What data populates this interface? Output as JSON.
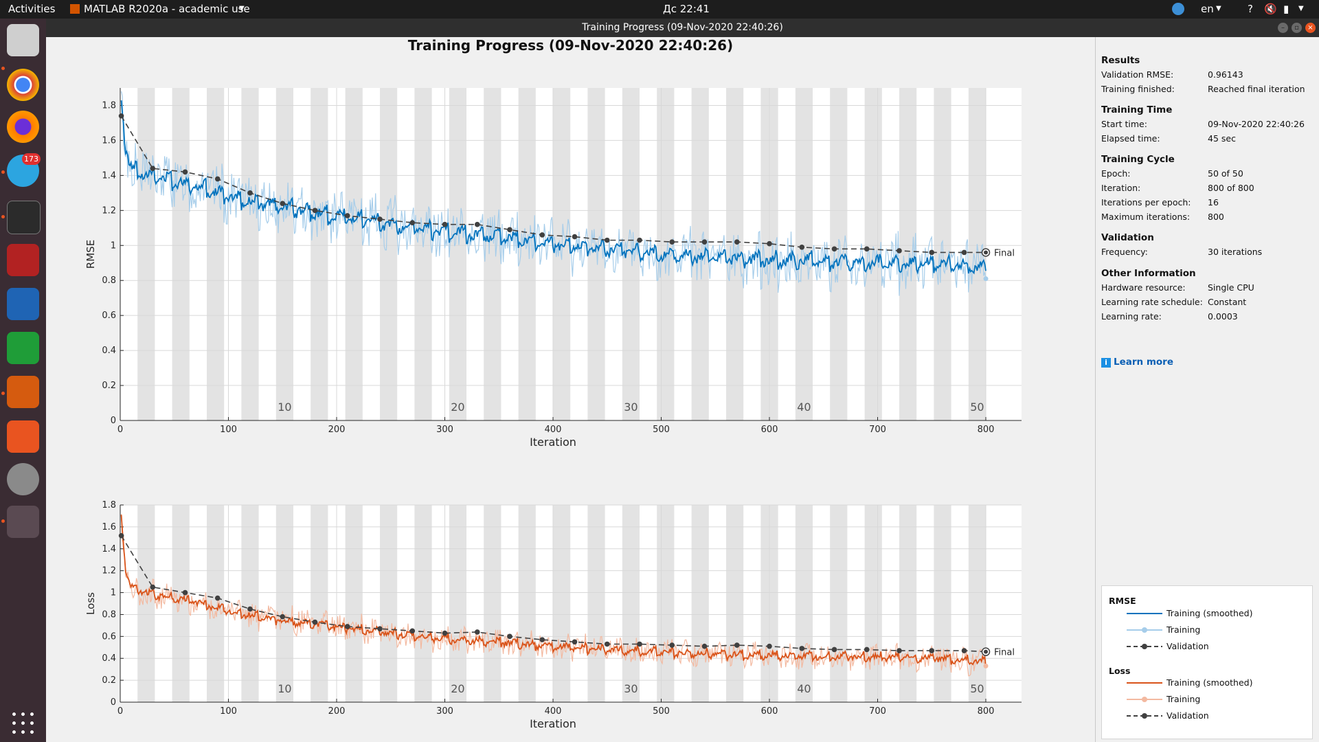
{
  "topbar": {
    "activities": "Activities",
    "app_menu": "MATLAB R2020a - academic use",
    "clock": "Дс 22:41",
    "language": "en",
    "help": "?",
    "notification_badge": "173"
  },
  "window": {
    "title": "Training Progress (09-Nov-2020 22:40:26)"
  },
  "plot": {
    "title": "Training Progress (09-Nov-2020 22:40:26)",
    "final_label": "Final"
  },
  "sidebar": {
    "results": {
      "title": "Results",
      "rows": [
        {
          "key": "Validation RMSE:",
          "value": "0.96143"
        },
        {
          "key": "Training finished:",
          "value": "Reached final iteration"
        }
      ]
    },
    "training_time": {
      "title": "Training Time",
      "rows": [
        {
          "key": "Start time:",
          "value": "09-Nov-2020 22:40:26"
        },
        {
          "key": "Elapsed time:",
          "value": "45 sec"
        }
      ]
    },
    "training_cycle": {
      "title": "Training Cycle",
      "rows": [
        {
          "key": "Epoch:",
          "value": "50 of 50"
        },
        {
          "key": "Iteration:",
          "value": "800 of 800"
        },
        {
          "key": "Iterations per epoch:",
          "value": "16"
        },
        {
          "key": "Maximum iterations:",
          "value": "800"
        }
      ]
    },
    "validation": {
      "title": "Validation",
      "rows": [
        {
          "key": "Frequency:",
          "value": "30 iterations"
        }
      ]
    },
    "other": {
      "title": "Other Information",
      "rows": [
        {
          "key": "Hardware resource:",
          "value": "Single CPU"
        },
        {
          "key": "Learning rate schedule:",
          "value": "Constant"
        },
        {
          "key": "Learning rate:",
          "value": "0.0003"
        }
      ]
    },
    "learn_more": "Learn more"
  },
  "legend": {
    "rmse_title": "RMSE",
    "loss_title": "Loss",
    "entries": [
      "Training (smoothed)",
      "Training",
      "Validation"
    ]
  },
  "colors": {
    "rmse_smoothed": "#0072bd",
    "rmse_raw": "#a6cdea",
    "loss_smoothed": "#d95319",
    "loss_raw": "#f3b9a0",
    "validation": "#404040",
    "epoch_band": "#e3e3e3"
  },
  "chart_data": [
    {
      "type": "line",
      "ylabel": "RMSE",
      "xlabel": "Iteration",
      "xlim": [
        0,
        800
      ],
      "ylim": [
        0,
        1.9
      ],
      "xticks": [
        0,
        100,
        200,
        300,
        400,
        500,
        600,
        700,
        800
      ],
      "yticks": [
        0,
        0.2,
        0.4,
        0.6,
        0.8,
        1,
        1.2,
        1.4,
        1.6,
        1.8
      ],
      "epoch_labels": [
        "10",
        "20",
        "30",
        "40",
        "50"
      ],
      "epoch_label_values": [
        10,
        20,
        30,
        40,
        50
      ],
      "iterations_per_epoch": 16,
      "validation": {
        "x": [
          1,
          30,
          60,
          90,
          120,
          150,
          180,
          210,
          240,
          270,
          300,
          330,
          360,
          390,
          420,
          450,
          480,
          510,
          540,
          570,
          600,
          630,
          660,
          690,
          720,
          750,
          780,
          800
        ],
        "y": [
          1.74,
          1.44,
          1.42,
          1.38,
          1.3,
          1.24,
          1.2,
          1.17,
          1.15,
          1.13,
          1.12,
          1.12,
          1.09,
          1.06,
          1.05,
          1.03,
          1.03,
          1.02,
          1.02,
          1.02,
          1.01,
          0.99,
          0.98,
          0.98,
          0.97,
          0.96,
          0.96,
          0.96
        ]
      },
      "smoothed": {
        "x": [
          1,
          5,
          10,
          20,
          30,
          50,
          80,
          100,
          150,
          200,
          250,
          300,
          350,
          400,
          450,
          500,
          550,
          600,
          650,
          700,
          750,
          800
        ],
        "y": [
          1.86,
          1.55,
          1.44,
          1.42,
          1.4,
          1.37,
          1.33,
          1.28,
          1.22,
          1.17,
          1.12,
          1.08,
          1.05,
          1.01,
          0.98,
          0.95,
          0.93,
          0.92,
          0.91,
          0.9,
          0.9,
          0.87
        ]
      },
      "training_last": 0.81
    },
    {
      "type": "line",
      "ylabel": "Loss",
      "xlabel": "Iteration",
      "xlim": [
        0,
        800
      ],
      "ylim": [
        0,
        1.8
      ],
      "xticks": [
        0,
        100,
        200,
        300,
        400,
        500,
        600,
        700,
        800
      ],
      "yticks": [
        0,
        0.2,
        0.4,
        0.6,
        0.8,
        1,
        1.2,
        1.4,
        1.6,
        1.8
      ],
      "epoch_labels": [
        "10",
        "20",
        "30",
        "40",
        "50"
      ],
      "epoch_label_values": [
        10,
        20,
        30,
        40,
        50
      ],
      "iterations_per_epoch": 16,
      "validation": {
        "x": [
          1,
          30,
          60,
          90,
          120,
          150,
          180,
          210,
          240,
          270,
          300,
          330,
          360,
          390,
          420,
          450,
          480,
          510,
          540,
          570,
          600,
          630,
          660,
          690,
          720,
          750,
          780,
          800
        ],
        "y": [
          1.52,
          1.05,
          1.0,
          0.95,
          0.85,
          0.78,
          0.73,
          0.69,
          0.67,
          0.65,
          0.63,
          0.64,
          0.6,
          0.57,
          0.55,
          0.53,
          0.53,
          0.52,
          0.51,
          0.52,
          0.51,
          0.49,
          0.48,
          0.48,
          0.47,
          0.47,
          0.47,
          0.46
        ]
      },
      "smoothed": {
        "x": [
          1,
          5,
          10,
          20,
          30,
          50,
          80,
          100,
          150,
          200,
          250,
          300,
          350,
          400,
          450,
          500,
          550,
          600,
          650,
          700,
          750,
          800
        ],
        "y": [
          1.73,
          1.2,
          1.05,
          1.01,
          0.99,
          0.95,
          0.89,
          0.83,
          0.75,
          0.69,
          0.63,
          0.58,
          0.55,
          0.51,
          0.48,
          0.46,
          0.44,
          0.43,
          0.42,
          0.41,
          0.41,
          0.37
        ]
      },
      "training_last": 0.33
    }
  ]
}
